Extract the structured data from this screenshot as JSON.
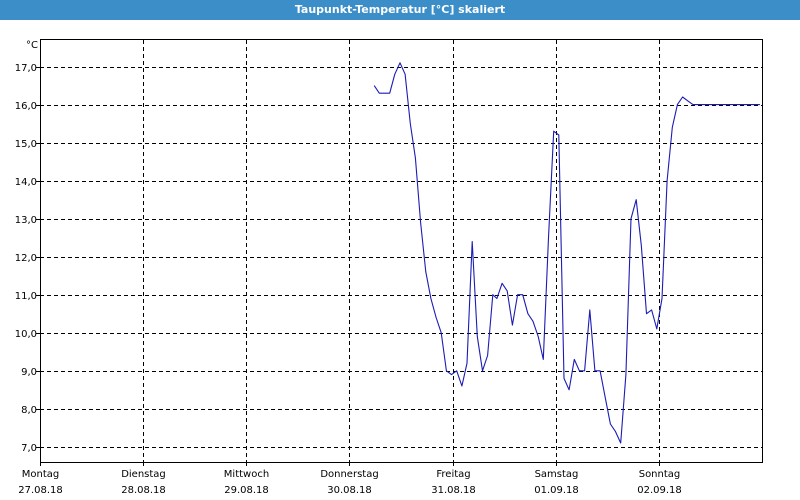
{
  "window": {
    "title": "Taupunkt-Temperatur [°C] skaliert",
    "titlebar_color": "#3b8ec8"
  },
  "chart_data": {
    "type": "line",
    "title": "Taupunkt-Temperatur [°C] skaliert",
    "ylabel": "°C",
    "xlabel": "",
    "ylim": [
      6.6,
      17.7
    ],
    "xlim": [
      0,
      7
    ],
    "grid": true,
    "yticks": [
      "7,0",
      "8,0",
      "9,0",
      "10,0",
      "11,0",
      "12,0",
      "13,0",
      "14,0",
      "15,0",
      "16,0",
      "17,0"
    ],
    "ytick_values": [
      7,
      8,
      9,
      10,
      11,
      12,
      13,
      14,
      15,
      16,
      17
    ],
    "xticks": [
      {
        "day": "Montag",
        "date": "27.08.18"
      },
      {
        "day": "Dienstag",
        "date": "28.08.18"
      },
      {
        "day": "Mittwoch",
        "date": "29.08.18"
      },
      {
        "day": "Donnerstag",
        "date": "30.08.18"
      },
      {
        "day": "Freitag",
        "date": "31.08.18"
      },
      {
        "day": "Samstag",
        "date": "01.09.18"
      },
      {
        "day": "Sonntag",
        "date": "02.09.18"
      }
    ],
    "line_color": "#1c1cb4",
    "series": [
      {
        "x": [
          3.24,
          3.29,
          3.39,
          3.44,
          3.49,
          3.54,
          3.59,
          3.64,
          3.69,
          3.74,
          3.79,
          3.84,
          3.89,
          3.94,
          3.99,
          4.04,
          4.09,
          4.14,
          4.19,
          4.24,
          4.29,
          4.34,
          4.39,
          4.43,
          4.48,
          4.53,
          4.58,
          4.63,
          4.68,
          4.73,
          4.78,
          4.83,
          4.88,
          4.93,
          4.98,
          5.03,
          5.08,
          5.13,
          5.18,
          5.23,
          5.28,
          5.33,
          5.38,
          5.43,
          5.48,
          5.53,
          5.58,
          5.63,
          5.68,
          5.73,
          5.78,
          5.83,
          5.88,
          5.93,
          5.98,
          6.03,
          6.08,
          6.13,
          6.18,
          6.23,
          6.28,
          6.33,
          6.38,
          6.43,
          6.48,
          6.53,
          6.58,
          6.63,
          6.68,
          6.73,
          6.78,
          6.83,
          6.88,
          6.93,
          6.98
        ],
        "y": [
          16.5,
          16.3,
          16.3,
          16.8,
          17.1,
          16.8,
          15.5,
          14.6,
          12.9,
          11.6,
          10.9,
          10.4,
          10.0,
          9.0,
          8.9,
          9.0,
          8.6,
          9.2,
          12.4,
          9.9,
          9.0,
          9.4,
          11.0,
          10.9,
          11.3,
          11.1,
          10.2,
          11.0,
          11.0,
          10.5,
          10.3,
          9.9,
          9.3,
          12.5,
          15.3,
          15.2,
          8.8,
          8.5,
          9.3,
          9.0,
          9.0,
          10.6,
          9.0,
          9.0,
          8.3,
          7.6,
          7.4,
          7.1,
          8.9,
          13.0,
          13.5,
          12.3,
          10.5,
          10.6,
          10.1,
          10.9,
          14.0,
          15.4,
          16.0,
          16.2,
          16.1,
          16.0,
          16.0,
          16.0,
          16.0,
          16.0,
          16.0,
          16.0,
          16.0,
          16.0,
          16.0,
          16.0,
          16.0,
          16.0,
          16.0
        ]
      }
    ]
  }
}
